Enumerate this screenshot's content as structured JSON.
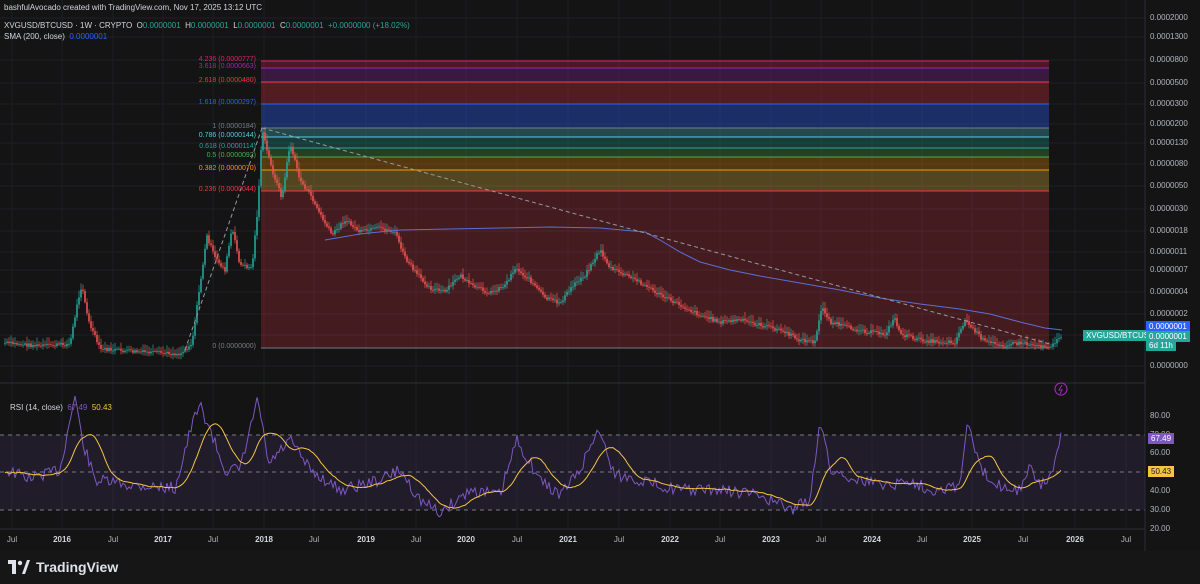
{
  "header": {
    "author_line": "bashfulAvocado created with TradingView.com, Nov 17, 2025 13:12 UTC",
    "symbol": "XVGUSD/BTCUSD · 1W · CRYPTO",
    "ohlc": {
      "o_label": "O",
      "o": "0.0000001",
      "h_label": "H",
      "h": "0.0000001",
      "l_label": "L",
      "l": "0.0000001",
      "c_label": "C",
      "c": "0.0000001",
      "change": "+0.0000000 (+18.02%)"
    },
    "sma_label": "SMA (200, close)",
    "sma_value": "0.0000001"
  },
  "price_axis": {
    "labels": [
      "0.0002000",
      "0.0001300",
      "0.0000800",
      "0.0000500",
      "0.0000300",
      "0.0000200",
      "0.0000130",
      "0.0000080",
      "0.0000050",
      "0.0000030",
      "0.0000018",
      "0.0000011",
      "0.0000007",
      "0.0000004",
      "0.0000002",
      "0.0000001",
      "0.0000000"
    ]
  },
  "price_tags": {
    "symbol": "XVGUSD/BTCUSD",
    "price": "0.0000001",
    "sma": "0.0000001",
    "countdown": "6d 11h"
  },
  "fib_levels": [
    {
      "label": "4.236 (0.0000777)",
      "color": "#e91e63"
    },
    {
      "label": "3.618 (0.0000663)",
      "color": "#9c27b0"
    },
    {
      "label": "2.618 (0.0000480)",
      "color": "#f23645"
    },
    {
      "label": "1.618 (0.0000297)",
      "color": "#2962ff"
    },
    {
      "label": "1 (0.0000184)",
      "color": "#787b86"
    },
    {
      "label": "0.786 (0.0000144)",
      "color": "#4dd0e1"
    },
    {
      "label": "0.618 (0.0000114)",
      "color": "#26a69a"
    },
    {
      "label": "0.5 (0.0000092)",
      "color": "#4caf50"
    },
    {
      "label": "0.382 (0.0000070)",
      "color": "#ff9800"
    },
    {
      "label": "0.236 (0.0000044)",
      "color": "#f23645"
    },
    {
      "label": "0 (0.0000000)",
      "color": "#787b86"
    }
  ],
  "rsi": {
    "label": "RSI (14, close)",
    "value": "67.49",
    "ma_value": "50.43",
    "axis_labels": [
      "80.00",
      "70.00",
      "60.00",
      "50.00",
      "40.00",
      "30.00",
      "20.00"
    ]
  },
  "time_axis": {
    "labels": [
      {
        "t": "Jul",
        "year": false
      },
      {
        "t": "2016",
        "year": true
      },
      {
        "t": "Jul",
        "year": false
      },
      {
        "t": "2017",
        "year": true
      },
      {
        "t": "Jul",
        "year": false
      },
      {
        "t": "2018",
        "year": true
      },
      {
        "t": "Jul",
        "year": false
      },
      {
        "t": "2019",
        "year": true
      },
      {
        "t": "Jul",
        "year": false
      },
      {
        "t": "2020",
        "year": true
      },
      {
        "t": "Jul",
        "year": false
      },
      {
        "t": "2021",
        "year": true
      },
      {
        "t": "Jul",
        "year": false
      },
      {
        "t": "2022",
        "year": true
      },
      {
        "t": "Jul",
        "year": false
      },
      {
        "t": "2023",
        "year": true
      },
      {
        "t": "Jul",
        "year": false
      },
      {
        "t": "2024",
        "year": true
      },
      {
        "t": "Jul",
        "year": false
      },
      {
        "t": "2025",
        "year": true
      },
      {
        "t": "Jul",
        "year": false
      },
      {
        "t": "2026",
        "year": true
      },
      {
        "t": "Jul",
        "year": false
      }
    ]
  },
  "footer": {
    "brand": "TradingView"
  },
  "chart_data": {
    "type": "candlestick",
    "symbol": "XVGUSD/BTCUSD",
    "interval": "1W",
    "y_scale": "log",
    "x": [
      "2015-07",
      "2016-01",
      "2016-07",
      "2017-01",
      "2017-07",
      "2018-01",
      "2018-07",
      "2019-01",
      "2019-07",
      "2020-01",
      "2020-07",
      "2021-01",
      "2021-07",
      "2022-01",
      "2022-07",
      "2023-01",
      "2023-07",
      "2024-01",
      "2024-07",
      "2025-01",
      "2025-07",
      "2025-11"
    ],
    "close_approx": [
      1e-07,
      1e-07,
      2e-07,
      1e-07,
      1e-06,
      1.5e-05,
      3e-06,
      1.8e-06,
      7e-07,
      5e-07,
      6e-07,
      4e-07,
      1.1e-06,
      5e-07,
      2e-07,
      1e-07,
      2e-07,
      1e-07,
      1e-07,
      1e-07,
      1e-07,
      1e-07
    ],
    "series": [
      {
        "name": "SMA (200, close)",
        "color": "#5b6fd6"
      },
      {
        "name": "RSI (14, close)",
        "color": "#7e57c2"
      },
      {
        "color": "#f5c542"
      }
    ],
    "rsi_levels": [
      70,
      50,
      30
    ],
    "rsi_approx": [
      40,
      72,
      60,
      38,
      85,
      95,
      55,
      40,
      45,
      30,
      48,
      42,
      65,
      38,
      35,
      33,
      80,
      45,
      40,
      75,
      38,
      67.49
    ],
    "candle_colors": {
      "up": "#26a69a",
      "down": "#ef5350"
    }
  }
}
